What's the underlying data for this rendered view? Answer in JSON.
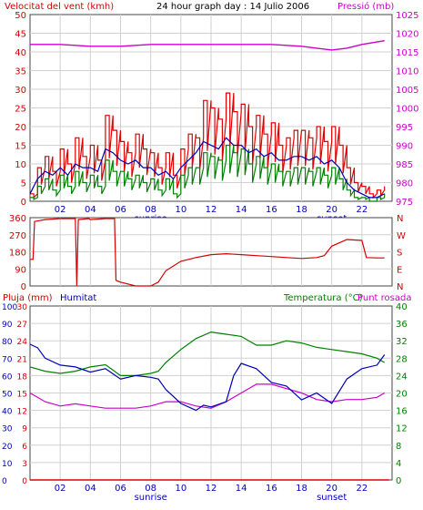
{
  "colors": {
    "wind": "#d40000",
    "gust": "#e00000",
    "wind_avg": "#008000",
    "wind_line": "#0000b4",
    "pressure": "#cc00cc",
    "direction": "#d40000",
    "rain": "#e00000",
    "humidity": "#0000b4",
    "temperature": "#008000",
    "dewpoint": "#cc00cc",
    "grid": "#d0d0d0",
    "axis_text_red": "#d40000",
    "axis_text_magenta": "#cc00cc",
    "axis_text_blue": "#0000b4",
    "axis_text_green": "#008000"
  },
  "chart_data": [
    {
      "type": "line",
      "id": "wind_pressure",
      "title": "24 hour graph day : 14 Julio 2006",
      "ylabel_left": "Velocitat del vent (kmh)",
      "ylabel_right": "Pressió (mb)",
      "ylim_left": [
        0,
        50
      ],
      "ylim_right": [
        975,
        1025
      ],
      "yticks_left": [
        "50",
        "45",
        "40",
        "35",
        "30",
        "25",
        "20",
        "15",
        "10",
        "5",
        "0"
      ],
      "yticks_right": [
        "1025",
        "1020",
        "1015",
        "1010",
        "1005",
        "1000",
        "995",
        "990",
        "985",
        "980",
        "975"
      ],
      "xticks": [
        "02",
        "04",
        "06",
        "08",
        "10",
        "12",
        "14",
        "16",
        "18",
        "20",
        "22"
      ],
      "x_annotations": [
        {
          "label": "sunrise",
          "x": 8
        },
        {
          "label": "sunset",
          "x": 20
        }
      ],
      "grid": true,
      "series": {
        "pressure": {
          "x": [
            0,
            2,
            4,
            6,
            8,
            10,
            12,
            14,
            16,
            18,
            19,
            20,
            21,
            22,
            23.5
          ],
          "y": [
            1017,
            1017,
            1016.5,
            1016.5,
            1017,
            1017,
            1017,
            1017,
            1017,
            1016.5,
            1016,
            1015.5,
            1016,
            1017,
            1018
          ]
        },
        "gust": {
          "x": [
            0,
            0.5,
            1,
            1.5,
            2,
            2.5,
            3,
            3.5,
            4,
            4.5,
            5,
            5.5,
            6,
            6.5,
            7,
            7.5,
            8,
            8.5,
            9,
            9.5,
            10,
            10.5,
            11,
            11.5,
            12,
            12.5,
            13,
            13.5,
            14,
            14.5,
            15,
            15.5,
            16,
            16.5,
            17,
            17.5,
            18,
            18.5,
            19,
            19.5,
            20,
            20.5,
            21,
            21.5,
            22,
            22.5,
            23,
            23.5
          ],
          "y": [
            2,
            9,
            12,
            8,
            14,
            10,
            17,
            12,
            15,
            11,
            23,
            19,
            16,
            13,
            18,
            14,
            13,
            9,
            13,
            7,
            14,
            18,
            17,
            27,
            25,
            22,
            29,
            24,
            26,
            20,
            23,
            18,
            21,
            15,
            17,
            19,
            19,
            17,
            20,
            16,
            20,
            15,
            9,
            5,
            4,
            2,
            3,
            4
          ]
        },
        "wind_avg": {
          "x": [
            0,
            0.5,
            1,
            1.5,
            2,
            2.5,
            3,
            3.5,
            4,
            4.5,
            5,
            5.5,
            6,
            6.5,
            7,
            7.5,
            8,
            8.5,
            9,
            9.5,
            10,
            10.5,
            11,
            11.5,
            12,
            12.5,
            13,
            13.5,
            14,
            14.5,
            15,
            15.5,
            16,
            16.5,
            17,
            17.5,
            18,
            18.5,
            19,
            19.5,
            20,
            20.5,
            21,
            21.5,
            22,
            22.5,
            23,
            23.5
          ],
          "y": [
            1,
            4,
            6,
            3,
            7,
            4,
            8,
            5,
            7,
            4,
            11,
            8,
            8,
            6,
            7,
            5,
            6,
            3,
            6,
            2,
            7,
            9,
            9,
            13,
            12,
            11,
            15,
            13,
            14,
            10,
            12,
            9,
            10,
            8,
            8,
            9,
            9,
            8,
            9,
            7,
            9,
            6,
            3,
            1,
            1,
            0,
            1,
            2
          ]
        },
        "wind_line": {
          "x": [
            0,
            0.5,
            1,
            1.5,
            2,
            2.5,
            3,
            3.5,
            4,
            4.5,
            5,
            5.5,
            6,
            6.5,
            7,
            7.5,
            8,
            8.5,
            9,
            9.5,
            10,
            10.5,
            11,
            11.5,
            12,
            12.5,
            13,
            13.5,
            14,
            14.5,
            15,
            15.5,
            16,
            16.5,
            17,
            17.5,
            18,
            18.5,
            19,
            19.5,
            20,
            20.5,
            21,
            21.5,
            22,
            22.5,
            23,
            23.5
          ],
          "y": [
            2,
            6,
            8,
            7,
            9,
            7,
            10,
            9,
            9,
            8,
            14,
            13,
            11,
            10,
            11,
            9,
            9,
            7,
            8,
            6,
            9,
            11,
            13,
            16,
            15,
            14,
            17,
            15,
            15,
            13,
            14,
            12,
            13,
            11,
            11,
            12,
            12,
            11,
            12,
            10,
            11,
            9,
            5,
            3,
            2,
            1,
            1,
            2
          ]
        }
      }
    },
    {
      "type": "line",
      "id": "direction",
      "ylim": [
        0,
        360
      ],
      "yticks_left": [
        "360",
        "270",
        "180",
        "90",
        "0"
      ],
      "yticks_right": [
        "N",
        "W",
        "S",
        "E",
        "N"
      ],
      "grid": true,
      "series": {
        "direction": {
          "x": [
            0,
            0.2,
            0.3,
            1,
            2,
            3,
            3.1,
            3.2,
            3.9,
            4,
            5,
            5.6,
            5.7,
            6,
            7,
            8,
            8.5,
            9,
            10,
            11,
            12,
            13,
            14,
            15,
            16,
            17,
            18,
            19,
            19.5,
            20,
            21,
            22,
            22.3,
            23,
            23.5
          ],
          "y": [
            140,
            140,
            340,
            350,
            355,
            355,
            0,
            350,
            355,
            350,
            355,
            355,
            30,
            20,
            0,
            0,
            20,
            80,
            130,
            150,
            165,
            170,
            165,
            160,
            155,
            150,
            145,
            150,
            160,
            210,
            245,
            240,
            150,
            148,
            148
          ]
        }
      }
    },
    {
      "type": "line",
      "id": "rain_humidity_temp",
      "ylabel_left_1": "Pluja (mm)",
      "ylabel_left_2": "Humitat",
      "ylabel_right": "Temperatura (°C)",
      "ylabel_right_2": "Punt rosada",
      "ylim_rain": [
        0,
        30
      ],
      "ylim_humidity": [
        0,
        100
      ],
      "ylim_temp": [
        0,
        40
      ],
      "yticks_rain": [
        "30",
        "27",
        "24",
        "21",
        "18",
        "15",
        "12",
        "9",
        "6",
        "3",
        "0"
      ],
      "yticks_humidity": [
        "100",
        "90",
        "80",
        "70",
        "60",
        "50",
        "40",
        "30",
        "20",
        "10",
        "0"
      ],
      "yticks_temp": [
        "40",
        "36",
        "32",
        "28",
        "24",
        "20",
        "16",
        "12",
        "8",
        "4",
        "0"
      ],
      "xticks": [
        "02",
        "04",
        "06",
        "08",
        "10",
        "12",
        "14",
        "16",
        "18",
        "20",
        "22"
      ],
      "x_annotations": [
        {
          "label": "sunrise",
          "x": 8
        },
        {
          "label": "sunset",
          "x": 20
        }
      ],
      "grid": true,
      "series": {
        "rain": {
          "x": [
            0,
            23.8
          ],
          "y": [
            0,
            0
          ]
        },
        "humidity": {
          "x": [
            0,
            0.5,
            1,
            2,
            3,
            4,
            5,
            6,
            7,
            8,
            8.5,
            9,
            10,
            11,
            11.5,
            12,
            13,
            13.5,
            14,
            15,
            16,
            17,
            18,
            19,
            20,
            21,
            22,
            23,
            23.5
          ],
          "y": [
            78,
            76,
            70,
            66,
            65,
            62,
            64,
            58,
            60,
            59,
            58,
            52,
            44,
            40,
            43,
            42,
            45,
            60,
            67,
            64,
            56,
            54,
            46,
            50,
            44,
            58,
            64,
            66,
            72
          ]
        },
        "temperature": {
          "x": [
            0,
            1,
            2,
            3,
            4,
            5,
            6,
            7,
            8,
            8.5,
            9,
            10,
            11,
            12,
            13,
            14,
            15,
            16,
            17,
            18,
            19,
            20,
            21,
            22,
            23,
            23.5
          ],
          "y": [
            26,
            25,
            24.5,
            25,
            26,
            26.5,
            24,
            24,
            24.5,
            25,
            27,
            30,
            32.5,
            34,
            33.5,
            33,
            31,
            31,
            32,
            31.5,
            30.5,
            30,
            29.5,
            29,
            28,
            27
          ]
        },
        "dewpoint": {
          "x": [
            0,
            1,
            2,
            3,
            4,
            5,
            6,
            7,
            8,
            9,
            10,
            11,
            12,
            13,
            14,
            15,
            16,
            17,
            18,
            19,
            20,
            21,
            22,
            23,
            23.5
          ],
          "y": [
            20,
            18,
            17,
            17.5,
            17,
            16.5,
            16.5,
            16.5,
            17,
            18,
            18,
            17,
            16.5,
            18,
            20,
            22,
            22,
            21,
            20,
            18.5,
            18,
            18.5,
            18.5,
            19,
            20
          ]
        }
      }
    }
  ]
}
